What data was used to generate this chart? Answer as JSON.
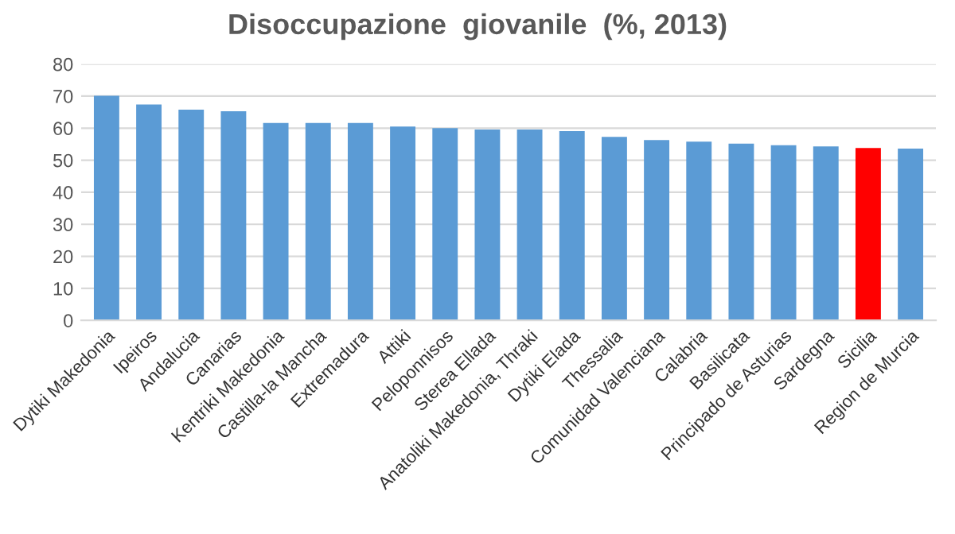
{
  "chart_data": {
    "type": "bar",
    "title": "Disoccupazione  giovanile  (%, 2013)",
    "categories": [
      "Dytiki Makedonia",
      "Ipeiros",
      "Andalucia",
      "Canarias",
      "Kentriki Makedonia",
      "Castilla-la Mancha",
      "Extremadura",
      "Attiki",
      "Peloponnisos",
      "Sterea Ellada",
      "Anatoliki Makedonia, Thraki",
      "Dytiki Elada",
      "Thessalia",
      "Comunidad Valenciana",
      "Calabria",
      "Basilicata",
      "Principado de Asturias",
      "Sardegna",
      "Sicilia",
      "Region de Murcia"
    ],
    "values": [
      70.1,
      67.4,
      65.8,
      65.3,
      61.6,
      61.6,
      61.6,
      60.5,
      60.0,
      59.6,
      59.6,
      59.1,
      57.3,
      56.3,
      55.8,
      55.2,
      54.7,
      54.3,
      53.8,
      53.6
    ],
    "colors": [
      "#5b9bd5",
      "#5b9bd5",
      "#5b9bd5",
      "#5b9bd5",
      "#5b9bd5",
      "#5b9bd5",
      "#5b9bd5",
      "#5b9bd5",
      "#5b9bd5",
      "#5b9bd5",
      "#5b9bd5",
      "#5b9bd5",
      "#5b9bd5",
      "#5b9bd5",
      "#5b9bd5",
      "#5b9bd5",
      "#5b9bd5",
      "#5b9bd5",
      "#ff0000",
      "#5b9bd5"
    ],
    "ylim": [
      0,
      80
    ],
    "yticks": [
      0,
      10,
      20,
      30,
      40,
      50,
      60,
      70,
      80
    ],
    "grid": "y",
    "legend": false
  }
}
